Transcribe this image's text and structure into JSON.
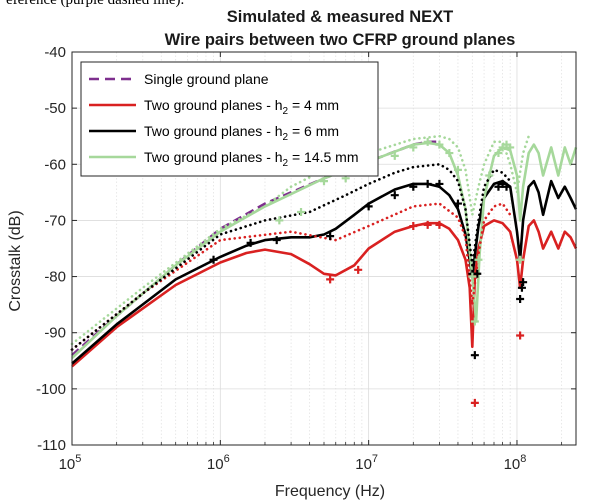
{
  "caption_fragment": "eference (purple dashed line).",
  "chart_data": {
    "type": "line",
    "title": [
      "Simulated & measured NEXT",
      "Wire pairs between two CFRP ground planes"
    ],
    "xlabel": "Frequency (Hz)",
    "ylabel": "Crosstalk (dB)",
    "xscale": "log",
    "xlim": [
      100000,
      250000000
    ],
    "ylim": [
      -110,
      -40
    ],
    "xticks": [
      100000,
      1000000,
      10000000,
      100000000
    ],
    "xtick_labels": [
      {
        "base": "10",
        "exp": "5"
      },
      {
        "base": "10",
        "exp": "6"
      },
      {
        "base": "10",
        "exp": "7"
      },
      {
        "base": "10",
        "exp": "8"
      }
    ],
    "yticks": [
      -110,
      -100,
      -90,
      -80,
      -70,
      -60,
      -50,
      -40
    ],
    "ytick_labels": [
      "-110",
      "-100",
      "-90",
      "-80",
      "-70",
      "-60",
      "-50",
      "-40"
    ],
    "grid": true,
    "minor_grid": true,
    "legend_position": "top-left",
    "legend": [
      {
        "text": "Single ground plane",
        "sub": "",
        "after": "",
        "color": "#7E2F8E",
        "dash": true
      },
      {
        "text": "Two ground planes - h",
        "sub": "2",
        "after": " = 4 mm",
        "color": "#D92121",
        "dash": false
      },
      {
        "text": "Two ground planes - h",
        "sub": "2",
        "after": " = 6 mm",
        "color": "#000000",
        "dash": false
      },
      {
        "text": "Two ground planes - h",
        "sub": "2",
        "after": " = 14.5 mm",
        "color": "#A6D89B",
        "dash": false
      }
    ],
    "series": [
      {
        "name": "Single ground plane",
        "style": "dashed",
        "color": "#7E2F8E",
        "x": [
          100000,
          200000,
          500000,
          1000000,
          2000000,
          5000000,
          10000000,
          20000000,
          25000000,
          30000000
        ],
        "y": [
          -94,
          -87,
          -78,
          -71.5,
          -67,
          -62.5,
          -59.5,
          -56.5,
          -56,
          -56
        ]
      },
      {
        "name": "Two ground planes - h2 = 4 mm",
        "style": "solid",
        "color": "#D92121",
        "x": [
          100000,
          200000,
          500000,
          1000000,
          1500000,
          2000000,
          3000000,
          4000000,
          5000000,
          6000000,
          8000000,
          10000000,
          15000000,
          20000000,
          25000000,
          30000000,
          35000000,
          40000000,
          45000000,
          48000000,
          50000000,
          52000000,
          55000000,
          60000000,
          70000000,
          80000000,
          90000000,
          100000000,
          105000000,
          110000000,
          120000000,
          130000000,
          140000000,
          150000000,
          170000000,
          190000000,
          210000000,
          230000000,
          250000000
        ],
        "y": [
          -96,
          -89,
          -81.5,
          -77.5,
          -75.8,
          -75.2,
          -76,
          -77.8,
          -79.5,
          -79.8,
          -78,
          -75,
          -72,
          -71,
          -70.5,
          -70.5,
          -71.5,
          -73.5,
          -77,
          -82,
          -92.5,
          -80,
          -75,
          -71,
          -70,
          -70.5,
          -72,
          -77,
          -82,
          -77,
          -71,
          -70,
          -72,
          -75,
          -72,
          -75,
          -72,
          -73,
          -75
        ]
      },
      {
        "name": "Two ground planes - h2 = 6 mm",
        "style": "solid",
        "color": "#000000",
        "x": [
          100000,
          200000,
          500000,
          1000000,
          1500000,
          2000000,
          3000000,
          4000000,
          5000000,
          6000000,
          8000000,
          10000000,
          15000000,
          20000000,
          25000000,
          30000000,
          35000000,
          40000000,
          45000000,
          50000000,
          55000000,
          60000000,
          70000000,
          80000000,
          90000000,
          100000000,
          105000000,
          110000000,
          120000000,
          130000000,
          140000000,
          150000000,
          170000000,
          190000000,
          210000000,
          230000000,
          250000000
        ],
        "y": [
          -95.5,
          -88.5,
          -80.5,
          -76.5,
          -74.5,
          -73.5,
          -73,
          -73,
          -72.5,
          -71.5,
          -69,
          -67,
          -64.5,
          -63.5,
          -63.5,
          -64,
          -65.5,
          -68,
          -72.5,
          -80,
          -71,
          -66,
          -63.5,
          -63,
          -64,
          -72,
          -77,
          -70,
          -64,
          -63,
          -65,
          -69,
          -63,
          -66,
          -64,
          -66,
          -68
        ]
      },
      {
        "name": "Two ground planes - h2 = 14.5 mm",
        "style": "solid",
        "color": "#A6D89B",
        "x": [
          100000,
          200000,
          500000,
          1000000,
          2000000,
          5000000,
          10000000,
          20000000,
          25000000,
          30000000,
          35000000,
          40000000,
          45000000,
          50000000,
          53000000,
          56000000,
          60000000,
          70000000,
          80000000,
          90000000,
          100000000,
          105000000,
          110000000,
          120000000,
          130000000,
          140000000,
          150000000,
          170000000,
          190000000,
          210000000,
          230000000,
          250000000
        ],
        "y": [
          -94.5,
          -87,
          -78,
          -72,
          -67.5,
          -62.5,
          -59.5,
          -56.5,
          -56.2,
          -56.5,
          -58,
          -62,
          -68,
          -80,
          -88,
          -76,
          -66,
          -58.5,
          -57,
          -57.5,
          -62,
          -70,
          -64,
          -58,
          -56.5,
          -58,
          -62,
          -57,
          -62,
          -57,
          -60,
          -57
        ]
      },
      {
        "name": "4 mm measured (dotted)",
        "style": "dotted",
        "color": "#D92121",
        "x": [
          100000,
          300000,
          1000000,
          3000000,
          6000000,
          10000000,
          20000000,
          30000000,
          40000000,
          45000000,
          50000000,
          55000000,
          60000000,
          70000000,
          80000000,
          90000000
        ],
        "y": [
          -93,
          -83,
          -73.5,
          -72,
          -73.5,
          -71,
          -67.5,
          -67,
          -69.5,
          -73,
          -85,
          -76,
          -70,
          -67.5,
          -67,
          -69
        ]
      },
      {
        "name": "6 mm measured (dotted)",
        "style": "dotted",
        "color": "#000000",
        "x": [
          100000,
          300000,
          1000000,
          2000000,
          4000000,
          7000000,
          10000000,
          15000000,
          20000000,
          30000000,
          35000000,
          40000000,
          45000000,
          50000000,
          55000000,
          60000000,
          70000000,
          80000000,
          90000000
        ],
        "y": [
          -93,
          -83,
          -72.5,
          -70,
          -68.5,
          -65.5,
          -63.5,
          -61.5,
          -60.5,
          -60,
          -61,
          -63,
          -68,
          -78,
          -70,
          -64,
          -61,
          -61.5,
          -63
        ]
      },
      {
        "name": "14.5 mm measured (dotted)",
        "style": "dotted",
        "color": "#A6D89B",
        "x": [
          100000,
          300000,
          1000000,
          2000000,
          3000000,
          5000000,
          10000000,
          20000000,
          30000000,
          35000000,
          40000000,
          45000000,
          50000000,
          55000000,
          60000000,
          70000000,
          80000000,
          90000000,
          100000000,
          110000000,
          120000000
        ],
        "y": [
          -92,
          -82,
          -71.5,
          -67.5,
          -64,
          -61,
          -58,
          -55.5,
          -55,
          -55.5,
          -57,
          -61,
          -69,
          -64,
          -60,
          -56,
          -56,
          -60,
          -65,
          -58,
          -55
        ]
      }
    ],
    "markers": [
      {
        "name": "4 mm crosses",
        "color": "#D92121",
        "x": [
          5500000,
          8500000,
          20000000,
          25000000,
          30000000,
          52000000,
          105000000
        ],
        "y": [
          -80.5,
          -78.8,
          -71,
          -70.8,
          -70.8,
          -102.5,
          -90.5
        ]
      },
      {
        "name": "6 mm crosses",
        "color": "#000000",
        "x": [
          900000,
          1600000,
          2400000,
          5500000,
          10000000,
          15000000,
          20000000,
          25000000,
          30000000,
          40000000,
          50000000,
          52000000,
          54000000,
          75000000,
          80000000,
          85000000,
          105000000,
          108000000,
          110000000
        ],
        "y": [
          -77,
          -74,
          -73.5,
          -72.8,
          -67.5,
          -65.5,
          -64,
          -63.5,
          -63.5,
          -67,
          -79.5,
          -94,
          -79.5,
          -64,
          -63.5,
          -64,
          -84,
          -82,
          -81
        ]
      },
      {
        "name": "14.5 mm crosses",
        "color": "#A6D89B",
        "x": [
          2500000,
          3500000,
          5000000,
          7000000,
          10000000,
          15000000,
          20000000,
          25000000,
          30000000,
          35000000,
          40000000,
          50000000,
          52000000,
          55000000,
          65000000,
          75000000,
          80000000,
          85000000,
          90000000,
          105000000
        ],
        "y": [
          -70,
          -68.5,
          -63,
          -62.5,
          -60.5,
          -58.5,
          -57,
          -56,
          -56.5,
          -58,
          -61,
          -80,
          -88,
          -77,
          -62,
          -58,
          -57,
          -56.5,
          -57,
          -77
        ]
      }
    ]
  }
}
